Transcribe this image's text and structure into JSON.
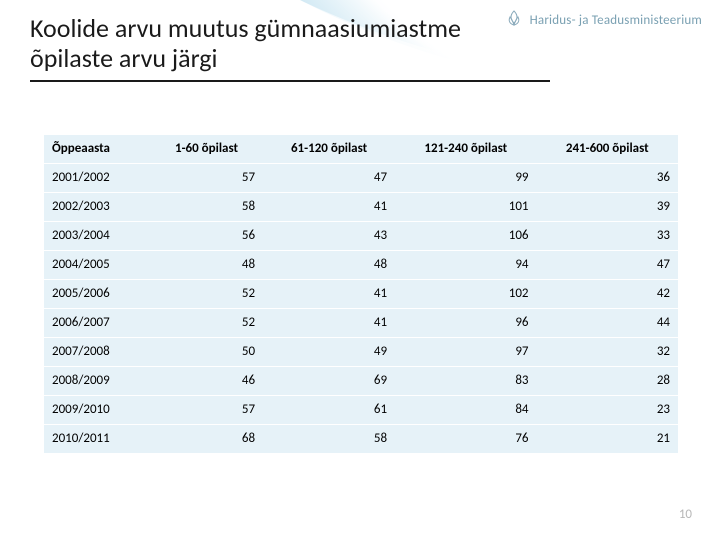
{
  "ministry": {
    "label": "Haridus- ja Teadusministeerium",
    "icon_stroke": "#8aaabb",
    "text_color": "#7aa0b2"
  },
  "title_line1": "Koolide arvu muutus  gümnaasiumiastme",
  "title_line2": "õpilaste arvu järgi",
  "table": {
    "background_color": "#e6f2f8",
    "row_border_color": "#ffffff",
    "font_size": 13,
    "columns": [
      "Õppeaasta",
      "1-60 õpilast",
      "61-120 õpilast",
      "121-240 õpilast",
      "241-600 õpilast"
    ],
    "rows": [
      [
        "2001/2002",
        57,
        47,
        99,
        36
      ],
      [
        "2002/2003",
        58,
        41,
        101,
        39
      ],
      [
        "2003/2004",
        56,
        43,
        106,
        33
      ],
      [
        "2004/2005",
        48,
        48,
        94,
        47
      ],
      [
        "2005/2006",
        52,
        41,
        102,
        42
      ],
      [
        "2006/2007",
        52,
        41,
        96,
        44
      ],
      [
        "2007/2008",
        50,
        49,
        97,
        32
      ],
      [
        "2008/2009",
        46,
        69,
        83,
        28
      ],
      [
        "2009/2010",
        57,
        61,
        84,
        23
      ],
      [
        "2010/2011",
        68,
        58,
        76,
        21
      ]
    ]
  },
  "page_number": "10",
  "colors": {
    "title_text": "#1a1a1a",
    "page_number": "#b8b8b8",
    "body_bg": "#ffffff"
  }
}
